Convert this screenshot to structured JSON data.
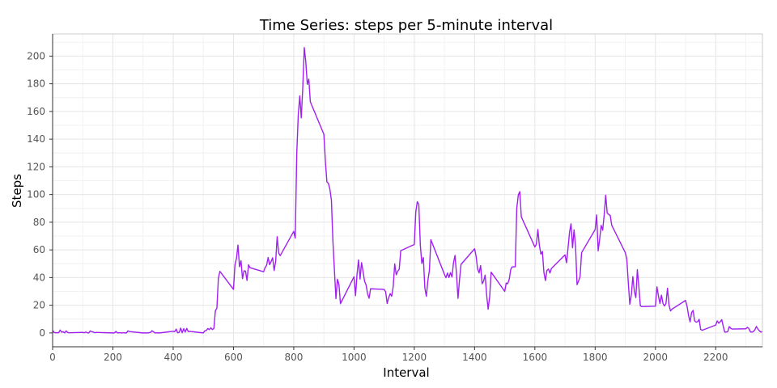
{
  "chart_data": {
    "type": "line",
    "title": "Time Series: steps per 5-minute interval",
    "xlabel": "Interval",
    "ylabel": "Steps",
    "xlim": [
      0,
      2355
    ],
    "ylim": [
      -10,
      216
    ],
    "xticks": [
      0,
      200,
      400,
      600,
      800,
      1000,
      1200,
      1400,
      1600,
      1800,
      2000,
      2200
    ],
    "yticks": [
      0,
      20,
      40,
      60,
      80,
      100,
      120,
      140,
      160,
      180,
      200
    ],
    "grid": true,
    "line_color": "#a020f0",
    "series": [
      {
        "x": [
          0,
          5,
          10,
          15,
          20,
          25,
          30,
          35,
          40,
          45,
          50,
          55,
          100,
          105,
          110,
          115,
          120,
          125,
          130,
          135,
          140,
          145,
          150,
          155,
          200,
          205,
          210,
          215,
          220,
          225,
          230,
          235,
          240,
          245,
          250,
          255,
          300,
          305,
          310,
          315,
          320,
          325,
          330,
          335,
          340,
          345,
          350,
          355,
          400,
          405,
          410,
          415,
          420,
          425,
          430,
          435,
          440,
          445,
          450,
          455,
          500,
          505,
          510,
          515,
          520,
          525,
          530,
          535,
          540,
          545,
          550,
          555,
          600,
          605,
          610,
          615,
          620,
          625,
          630,
          635,
          640,
          645,
          650,
          655,
          700,
          705,
          710,
          715,
          720,
          725,
          730,
          735,
          740,
          745,
          750,
          755,
          800,
          805,
          810,
          815,
          820,
          825,
          830,
          835,
          840,
          845,
          850,
          855,
          900,
          905,
          910,
          915,
          920,
          925,
          930,
          935,
          940,
          945,
          950,
          955,
          1000,
          1005,
          1010,
          1015,
          1020,
          1025,
          1030,
          1035,
          1040,
          1045,
          1050,
          1055,
          1100,
          1105,
          1110,
          1115,
          1120,
          1125,
          1130,
          1135,
          1140,
          1145,
          1150,
          1155,
          1200,
          1205,
          1210,
          1215,
          1220,
          1225,
          1230,
          1235,
          1240,
          1245,
          1250,
          1255,
          1300,
          1305,
          1310,
          1315,
          1320,
          1325,
          1330,
          1335,
          1340,
          1345,
          1350,
          1355,
          1400,
          1405,
          1410,
          1415,
          1420,
          1425,
          1430,
          1435,
          1440,
          1445,
          1450,
          1455,
          1500,
          1505,
          1510,
          1515,
          1520,
          1525,
          1530,
          1535,
          1540,
          1545,
          1550,
          1555,
          1600,
          1605,
          1610,
          1615,
          1620,
          1625,
          1630,
          1635,
          1640,
          1645,
          1650,
          1655,
          1700,
          1705,
          1710,
          1715,
          1720,
          1725,
          1730,
          1735,
          1740,
          1745,
          1750,
          1755,
          1800,
          1805,
          1810,
          1815,
          1820,
          1825,
          1830,
          1835,
          1840,
          1845,
          1850,
          1855,
          1900,
          1905,
          1910,
          1915,
          1920,
          1925,
          1930,
          1935,
          1940,
          1945,
          1950,
          1955,
          2000,
          2005,
          2010,
          2015,
          2020,
          2025,
          2030,
          2035,
          2040,
          2045,
          2050,
          2055,
          2100,
          2105,
          2110,
          2115,
          2120,
          2125,
          2130,
          2135,
          2140,
          2145,
          2150,
          2155,
          2200,
          2205,
          2210,
          2215,
          2220,
          2225,
          2230,
          2235,
          2240,
          2245,
          2250,
          2255,
          2300,
          2305,
          2310,
          2315,
          2320,
          2325,
          2330,
          2335,
          2340,
          2345,
          2350,
          2355
        ],
        "y": [
          1.7,
          0.3,
          0.1,
          0.2,
          0.1,
          2.1,
          0.5,
          0.9,
          0,
          1.5,
          0.3,
          0.1,
          0.4,
          0.1,
          0.7,
          0.1,
          0,
          1.5,
          0.9,
          0.6,
          0.2,
          0.3,
          0.3,
          0.3,
          0,
          0,
          1.1,
          0,
          0.2,
          0.1,
          0,
          0.2,
          0,
          0,
          1.5,
          1.0,
          0,
          0,
          0,
          0,
          0.2,
          0.4,
          1.6,
          0.8,
          0,
          0.1,
          0,
          0,
          1.2,
          0.9,
          2.8,
          0.1,
          0.4,
          3.5,
          0.1,
          3.1,
          0.7,
          3.3,
          1.0,
          1.1,
          0,
          1.5,
          1.8,
          3.2,
          2.4,
          3.7,
          2.5,
          3.1,
          16.0,
          17.9,
          39.5,
          44.5,
          31.5,
          49.3,
          53.8,
          63.5,
          47.8,
          52.2,
          39.2,
          44.9,
          44.7,
          37.9,
          49.2,
          47.1,
          44.2,
          47.2,
          48.9,
          54.5,
          49.3,
          51.6,
          54.3,
          45.1,
          51.6,
          69.5,
          57.8,
          55.8,
          73.4,
          68.5,
          129.4,
          157.5,
          171.2,
          155.4,
          177.3,
          206.2,
          195.9,
          179.6,
          183.4,
          167.0,
          143.5,
          124.0,
          109.1,
          108.1,
          103.7,
          95.9,
          66.2,
          45.2,
          24.8,
          38.8,
          34.9,
          21.1,
          40.6,
          26.9,
          42.4,
          52.7,
          38.9,
          50.8,
          44.3,
          37.4,
          34.7,
          28.3,
          25.1,
          31.9,
          31.4,
          29.7,
          21.3,
          25.5,
          28.4,
          26.5,
          33.4,
          49.9,
          42.0,
          44.6,
          46.0,
          59.4,
          63.9,
          87.5,
          94.8,
          92.8,
          63.4,
          50.2,
          54.5,
          32.4,
          26.5,
          37.7,
          45.1,
          67.3,
          42.3,
          39.9,
          43.3,
          40.0,
          43.6,
          40.4,
          50.6,
          56.0,
          42.5,
          25.0,
          38.4,
          49.5,
          60.8,
          55.5,
          46.2,
          43.4,
          48.7,
          35.5,
          37.5,
          41.8,
          27.5,
          17.1,
          26.1,
          43.9,
          30.0,
          36.1,
          35.5,
          38.8,
          45.9,
          47.8,
          47.8,
          47.8,
          90.1,
          99.6,
          102.1,
          83.9,
          62.1,
          64.1,
          74.7,
          63.2,
          56.9,
          58.9,
          43.7,
          37.8,
          45.2,
          46.2,
          43.3,
          46.6,
          56.4,
          50.7,
          61.2,
          72.7,
          78.9,
          61.5,
          74.5,
          62.6,
          34.8,
          37.5,
          40.7,
          58.0,
          74.7,
          85.3,
          59.3,
          67.8,
          77.7,
          74.2,
          85.3,
          99.5,
          86.6,
          85.6,
          84.9,
          77.8,
          58.0,
          53.4,
          36.3,
          20.7,
          27.4,
          40.7,
          30.2,
          25.5,
          45.7,
          33.5,
          19.6,
          19.0,
          19.3,
          33.3,
          26.8,
          21.2,
          27.3,
          21.3,
          19.5,
          21.3,
          32.3,
          20.2,
          15.9,
          17.2,
          23.5,
          19.2,
          12.5,
          8.0,
          14.7,
          16.3,
          8.7,
          7.8,
          8.1,
          9.8,
          2.6,
          1.9,
          5.7,
          8.7,
          7.0,
          8.1,
          9.6,
          4.7,
          0.6,
          0.6,
          1.0,
          4.6,
          3.3,
          2.8,
          3.0,
          4.1,
          3.2,
          0.8,
          0.6,
          1.0,
          2.3,
          4.7,
          2.8,
          1.5,
          0.6,
          1.1
        ]
      }
    ]
  }
}
